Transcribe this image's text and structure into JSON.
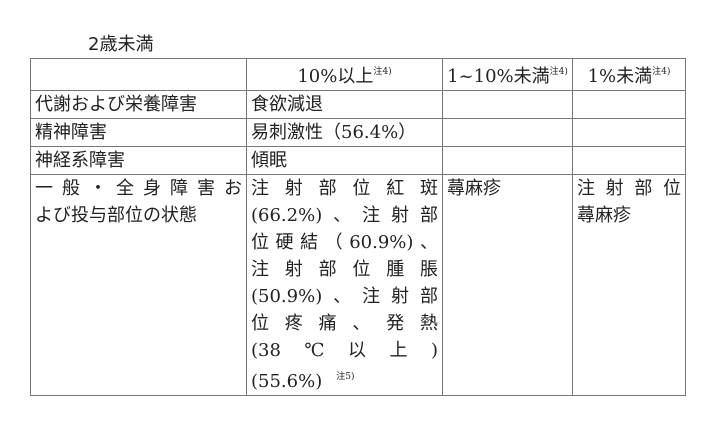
{
  "title": "2歳未満",
  "table": {
    "headers": [
      {
        "label": "",
        "note": ""
      },
      {
        "label": "10%以上",
        "note": "注4)"
      },
      {
        "label": "1~10%未満",
        "note": "注4)"
      },
      {
        "label": "1%未満",
        "note": "注4)"
      }
    ],
    "rows": [
      {
        "category": [
          "代謝および栄養障害"
        ],
        "ge10": [
          "食欲減退"
        ],
        "r1to10": [],
        "lt1": []
      },
      {
        "category": [
          "精神障害"
        ],
        "ge10": [
          "易刺激性（56.4%）"
        ],
        "r1to10": [],
        "lt1": []
      },
      {
        "category": [
          "神経系障害"
        ],
        "ge10": [
          "傾眠"
        ],
        "r1to10": [],
        "lt1": []
      },
      {
        "category": [
          "一般・全身障害お",
          "よび投与部位の状態"
        ],
        "ge10": [
          "注射部位紅斑",
          "(66.2%)、注射部",
          "位硬結（60.9%)、",
          "注射部位腫脹",
          "(50.9%)、注射部",
          "位疼痛、発熱",
          "(38℃以上)",
          "(55.6%)"
        ],
        "ge10_note": "注5)",
        "r1to10": [
          "蕁麻疹"
        ],
        "lt1": [
          "注射部位",
          "蕁麻疹"
        ]
      }
    ]
  }
}
